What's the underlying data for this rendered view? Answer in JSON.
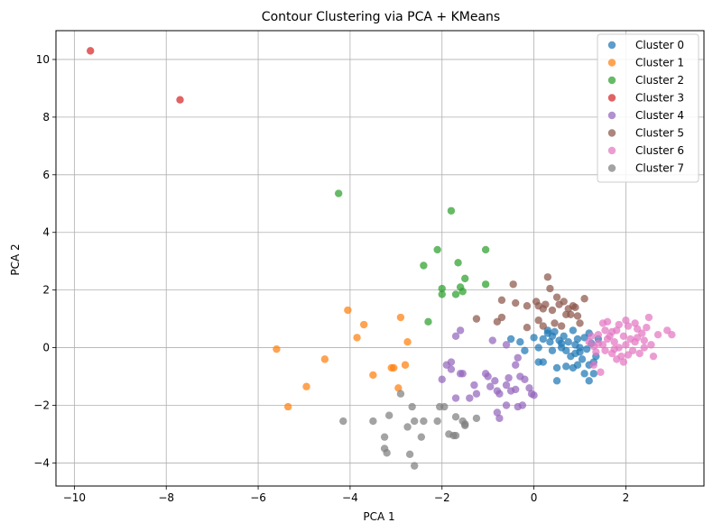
{
  "chart_data": {
    "type": "scatter",
    "title": "Contour Clustering via PCA + KMeans",
    "xlabel": "PCA 1",
    "ylabel": "PCA 2",
    "xlim": [
      -10.4,
      3.7
    ],
    "ylim": [
      -4.8,
      11.0
    ],
    "xticks": [
      -10,
      -8,
      -6,
      -4,
      -2,
      0,
      2
    ],
    "yticks": [
      -4,
      -2,
      0,
      2,
      4,
      6,
      8,
      10
    ],
    "xtick_labels": [
      "−10",
      "−8",
      "−6",
      "−4",
      "−2",
      "0",
      "2"
    ],
    "ytick_labels": [
      "−4",
      "−2",
      "0",
      "2",
      "4",
      "6",
      "8",
      "10"
    ],
    "grid": true,
    "legend_position": "top-right",
    "series": [
      {
        "name": "Cluster 0",
        "color": "#1f77b4",
        "points": [
          [
            -0.5,
            0.3
          ],
          [
            -0.3,
            0.2
          ],
          [
            -0.2,
            -0.1
          ],
          [
            0.0,
            0.35
          ],
          [
            0.1,
            0.0
          ],
          [
            0.2,
            -0.5
          ],
          [
            0.2,
            0.3
          ],
          [
            0.3,
            0.5
          ],
          [
            0.35,
            0.2
          ],
          [
            0.4,
            -0.1
          ],
          [
            0.45,
            0.55
          ],
          [
            0.5,
            -0.7
          ],
          [
            0.5,
            -1.15
          ],
          [
            0.55,
            0.25
          ],
          [
            0.6,
            0.0
          ],
          [
            0.65,
            0.4
          ],
          [
            0.7,
            -0.1
          ],
          [
            0.75,
            0.2
          ],
          [
            0.8,
            -0.3
          ],
          [
            0.85,
            0.6
          ],
          [
            0.85,
            -0.7
          ],
          [
            0.9,
            0.1
          ],
          [
            0.95,
            -0.6
          ],
          [
            0.95,
            0.3
          ],
          [
            1.0,
            0.0
          ],
          [
            1.05,
            -0.4
          ],
          [
            1.1,
            0.35
          ],
          [
            1.1,
            -0.9
          ],
          [
            1.15,
            -0.05
          ],
          [
            1.2,
            -0.6
          ],
          [
            1.2,
            -1.15
          ],
          [
            1.25,
            0.15
          ],
          [
            1.3,
            -0.9
          ],
          [
            1.35,
            -0.3
          ],
          [
            1.4,
            0.3
          ],
          [
            0.3,
            0.6
          ],
          [
            0.6,
            0.15
          ],
          [
            0.9,
            -0.2
          ],
          [
            1.2,
            0.5
          ],
          [
            0.4,
            0.4
          ],
          [
            0.7,
            -0.65
          ],
          [
            1.0,
            -0.15
          ],
          [
            1.3,
            -0.5
          ],
          [
            0.1,
            -0.5
          ]
        ]
      },
      {
        "name": "Cluster 1",
        "color": "#ff7f0e",
        "points": [
          [
            -5.6,
            -0.05
          ],
          [
            -5.35,
            -2.05
          ],
          [
            -4.95,
            -1.35
          ],
          [
            -4.55,
            -0.4
          ],
          [
            -4.05,
            1.3
          ],
          [
            -3.85,
            0.35
          ],
          [
            -3.7,
            0.8
          ],
          [
            -3.5,
            -0.95
          ],
          [
            -3.1,
            -0.7
          ],
          [
            -3.05,
            -0.7
          ],
          [
            -2.95,
            -1.4
          ],
          [
            -2.9,
            1.05
          ],
          [
            -2.8,
            -0.6
          ],
          [
            -2.75,
            0.2
          ]
        ]
      },
      {
        "name": "Cluster 2",
        "color": "#2ca02c",
        "points": [
          [
            -4.25,
            5.35
          ],
          [
            -2.4,
            2.85
          ],
          [
            -2.3,
            0.9
          ],
          [
            -2.1,
            3.4
          ],
          [
            -2.0,
            1.85
          ],
          [
            -2.0,
            2.05
          ],
          [
            -1.8,
            4.75
          ],
          [
            -1.7,
            1.85
          ],
          [
            -1.65,
            2.95
          ],
          [
            -1.6,
            2.1
          ],
          [
            -1.55,
            1.95
          ],
          [
            -1.5,
            2.4
          ],
          [
            -1.05,
            2.2
          ],
          [
            -1.05,
            3.4
          ]
        ]
      },
      {
        "name": "Cluster 3",
        "color": "#d62728",
        "points": [
          [
            -9.65,
            10.3
          ],
          [
            -7.7,
            8.6
          ]
        ]
      },
      {
        "name": "Cluster 4",
        "color": "#9467bd",
        "points": [
          [
            -2.0,
            -1.1
          ],
          [
            -1.9,
            -0.6
          ],
          [
            -1.8,
            -0.5
          ],
          [
            -1.8,
            -0.75
          ],
          [
            -1.7,
            0.4
          ],
          [
            -1.7,
            -1.75
          ],
          [
            -1.6,
            0.6
          ],
          [
            -1.6,
            -0.9
          ],
          [
            -1.55,
            -0.9
          ],
          [
            -1.4,
            -1.75
          ],
          [
            -1.3,
            -1.3
          ],
          [
            -1.25,
            -1.6
          ],
          [
            -1.05,
            -0.9
          ],
          [
            -0.9,
            0.25
          ],
          [
            -0.85,
            -1.15
          ],
          [
            -0.8,
            -1.5
          ],
          [
            -0.75,
            -2.45
          ],
          [
            -0.8,
            -2.25
          ],
          [
            -0.6,
            0.1
          ],
          [
            -0.6,
            -1.3
          ],
          [
            -0.55,
            -1.05
          ],
          [
            -0.5,
            -1.5
          ],
          [
            -0.4,
            -0.6
          ],
          [
            -0.4,
            -1.45
          ],
          [
            -0.35,
            -2.05
          ],
          [
            -0.3,
            -1.0
          ],
          [
            -0.25,
            -2.0
          ],
          [
            -0.1,
            -1.4
          ],
          [
            -0.05,
            -1.6
          ],
          [
            0.0,
            -1.65
          ],
          [
            -0.75,
            -1.6
          ],
          [
            -1.0,
            -1.0
          ],
          [
            -0.35,
            -0.35
          ],
          [
            -0.2,
            -1.1
          ],
          [
            -0.6,
            -2.0
          ],
          [
            -0.95,
            -1.35
          ]
        ]
      },
      {
        "name": "Cluster 5",
        "color": "#8c564b",
        "points": [
          [
            -1.25,
            1.0
          ],
          [
            -0.8,
            0.9
          ],
          [
            -0.7,
            1.05
          ],
          [
            -0.7,
            1.65
          ],
          [
            -0.45,
            2.2
          ],
          [
            -0.4,
            1.55
          ],
          [
            -0.15,
            1.45
          ],
          [
            -0.15,
            0.7
          ],
          [
            0.05,
            1.6
          ],
          [
            0.1,
            1.45
          ],
          [
            0.1,
            0.95
          ],
          [
            0.2,
            0.75
          ],
          [
            0.25,
            1.5
          ],
          [
            0.3,
            2.45
          ],
          [
            0.35,
            2.05
          ],
          [
            0.4,
            1.3
          ],
          [
            0.45,
            0.85
          ],
          [
            0.5,
            1.75
          ],
          [
            0.55,
            1.5
          ],
          [
            0.6,
            0.75
          ],
          [
            0.65,
            1.6
          ],
          [
            0.75,
            1.35
          ],
          [
            0.8,
            1.15
          ],
          [
            0.85,
            1.45
          ],
          [
            0.9,
            1.4
          ],
          [
            0.95,
            1.1
          ],
          [
            1.0,
            0.85
          ],
          [
            1.1,
            1.7
          ],
          [
            0.2,
            1.35
          ],
          [
            0.7,
            1.15
          ]
        ]
      },
      {
        "name": "Cluster 6",
        "color": "#e377c2",
        "points": [
          [
            1.2,
            0.2
          ],
          [
            1.25,
            0.4
          ],
          [
            1.3,
            0.05
          ],
          [
            1.35,
            -0.15
          ],
          [
            1.4,
            0.45
          ],
          [
            1.45,
            -0.85
          ],
          [
            1.5,
            0.85
          ],
          [
            1.5,
            0.1
          ],
          [
            1.55,
            -0.1
          ],
          [
            1.6,
            0.9
          ],
          [
            1.6,
            0.3
          ],
          [
            1.65,
            0.4
          ],
          [
            1.7,
            0.55
          ],
          [
            1.7,
            -0.2
          ],
          [
            1.75,
            0.2
          ],
          [
            1.8,
            0.6
          ],
          [
            1.8,
            -0.4
          ],
          [
            1.85,
            0.0
          ],
          [
            1.9,
            -0.3
          ],
          [
            1.95,
            0.4
          ],
          [
            1.95,
            -0.5
          ],
          [
            2.0,
            0.95
          ],
          [
            2.0,
            0.1
          ],
          [
            2.05,
            0.75
          ],
          [
            2.1,
            0.3
          ],
          [
            2.15,
            -0.1
          ],
          [
            2.2,
            0.2
          ],
          [
            2.2,
            0.85
          ],
          [
            2.25,
            0.35
          ],
          [
            2.3,
            -0.2
          ],
          [
            2.35,
            0.5
          ],
          [
            2.4,
            0.0
          ],
          [
            2.45,
            0.7
          ],
          [
            2.5,
            1.05
          ],
          [
            2.55,
            0.1
          ],
          [
            2.6,
            -0.3
          ],
          [
            2.7,
            0.45
          ],
          [
            2.9,
            0.6
          ],
          [
            3.0,
            0.45
          ],
          [
            1.3,
            -0.6
          ],
          [
            1.55,
            0.6
          ],
          [
            1.75,
            -0.05
          ],
          [
            2.05,
            -0.25
          ],
          [
            2.25,
            0.65
          ],
          [
            1.4,
            0.15
          ],
          [
            1.85,
            0.8
          ],
          [
            2.4,
            0.25
          ]
        ]
      },
      {
        "name": "Cluster 7",
        "color": "#7f7f7f",
        "points": [
          [
            -4.15,
            -2.55
          ],
          [
            -3.5,
            -2.55
          ],
          [
            -3.25,
            -3.1
          ],
          [
            -3.25,
            -3.5
          ],
          [
            -3.2,
            -3.65
          ],
          [
            -3.15,
            -2.35
          ],
          [
            -2.9,
            -1.6
          ],
          [
            -2.75,
            -2.75
          ],
          [
            -2.7,
            -3.7
          ],
          [
            -2.65,
            -2.05
          ],
          [
            -2.6,
            -4.1
          ],
          [
            -2.6,
            -2.55
          ],
          [
            -2.45,
            -3.1
          ],
          [
            -2.4,
            -2.55
          ],
          [
            -2.1,
            -2.55
          ],
          [
            -2.05,
            -2.05
          ],
          [
            -1.95,
            -2.05
          ],
          [
            -1.85,
            -3.0
          ],
          [
            -1.75,
            -3.05
          ],
          [
            -1.7,
            -3.05
          ],
          [
            -1.7,
            -2.4
          ],
          [
            -1.55,
            -2.55
          ],
          [
            -1.5,
            -2.65
          ],
          [
            -1.5,
            -2.7
          ],
          [
            -1.25,
            -2.45
          ]
        ]
      }
    ]
  }
}
